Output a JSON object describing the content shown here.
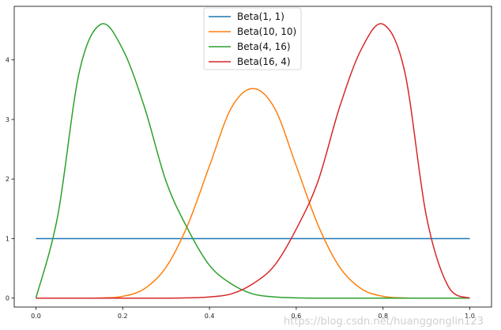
{
  "chart_data": {
    "type": "line",
    "xlim": [
      -0.05,
      1.05
    ],
    "ylim": [
      -0.15,
      4.9
    ],
    "x_ticks": [
      0.0,
      0.2,
      0.4,
      0.6,
      0.8,
      1.0
    ],
    "x_tick_labels": [
      "0.0",
      "0.2",
      "0.4",
      "0.6",
      "0.8",
      "1.0"
    ],
    "y_ticks": [
      0,
      1,
      2,
      3,
      4
    ],
    "y_tick_labels": [
      "0",
      "1",
      "2",
      "3",
      "4"
    ],
    "grid": false,
    "legend_position": "top-center",
    "x": [
      0.0,
      0.05,
      0.1,
      0.15,
      0.2,
      0.25,
      0.3,
      0.35,
      0.4,
      0.45,
      0.5,
      0.55,
      0.6,
      0.65,
      0.7,
      0.75,
      0.8,
      0.85,
      0.9,
      0.95,
      1.0
    ],
    "series": [
      {
        "name": "Beta(1, 1)",
        "color": "#1f77b4",
        "values": [
          1,
          1,
          1,
          1,
          1,
          1,
          1,
          1,
          1,
          1,
          1,
          1,
          1,
          1,
          1,
          1,
          1,
          1,
          1,
          1,
          1
        ]
      },
      {
        "name": "Beta(10, 10)",
        "color": "#ff7f0e",
        "values": [
          0.0,
          0.0,
          0.0,
          0.003,
          0.03,
          0.157,
          0.52,
          1.23,
          2.22,
          3.19,
          3.52,
          3.19,
          2.22,
          1.23,
          0.52,
          0.157,
          0.03,
          0.003,
          0.0,
          0.0,
          0.0
        ]
      },
      {
        "name": "Beta(4, 16)",
        "color": "#2ca02c",
        "values": [
          0.0,
          1.37,
          3.8,
          4.6,
          4.18,
          3.21,
          1.96,
          1.16,
          0.55,
          0.24,
          0.07,
          0.02,
          0.005,
          0.0,
          0.0,
          0.0,
          0.0,
          0.0,
          0.0,
          0.0,
          0.0
        ]
      },
      {
        "name": "Beta(16, 4)",
        "color": "#d62728",
        "values": [
          0.0,
          0.0,
          0.0,
          0.0,
          0.0,
          0.0,
          0.0,
          0.005,
          0.02,
          0.07,
          0.24,
          0.55,
          1.16,
          1.96,
          3.21,
          4.18,
          4.6,
          3.8,
          1.37,
          0.2,
          0.0
        ]
      }
    ]
  },
  "watermark": "https://blog.csdn.net/huanggonglin123"
}
